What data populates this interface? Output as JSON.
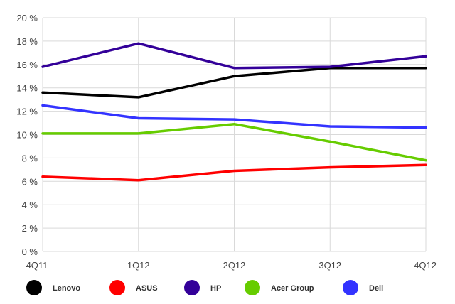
{
  "chart_data": {
    "type": "line",
    "categories": [
      "4Q11",
      "1Q12",
      "2Q12",
      "3Q12",
      "4Q12"
    ],
    "ylim": [
      0,
      20
    ],
    "yticks": [
      0,
      2,
      4,
      6,
      8,
      10,
      12,
      14,
      16,
      18,
      20
    ],
    "ytick_labels": [
      "0 %",
      "2 %",
      "4 %",
      "6 %",
      "8 %",
      "10 %",
      "12 %",
      "14 %",
      "16 %",
      "18 %",
      "20 %"
    ],
    "grid": true,
    "legend_position": "bottom",
    "series": [
      {
        "name": "Lenovo",
        "color": "#000000",
        "values": [
          13.6,
          13.2,
          15.0,
          15.7,
          15.7
        ]
      },
      {
        "name": "ASUS",
        "color": "#ff0000",
        "values": [
          6.4,
          6.1,
          6.9,
          7.2,
          7.4
        ]
      },
      {
        "name": "HP",
        "color": "#330099",
        "values": [
          15.8,
          17.8,
          15.7,
          15.8,
          16.7
        ]
      },
      {
        "name": "Acer Group",
        "color": "#66cc00",
        "values": [
          10.1,
          10.1,
          10.9,
          9.4,
          7.8
        ]
      },
      {
        "name": "Dell",
        "color": "#3333ff",
        "values": [
          12.5,
          11.4,
          11.3,
          10.7,
          10.6
        ]
      }
    ]
  }
}
